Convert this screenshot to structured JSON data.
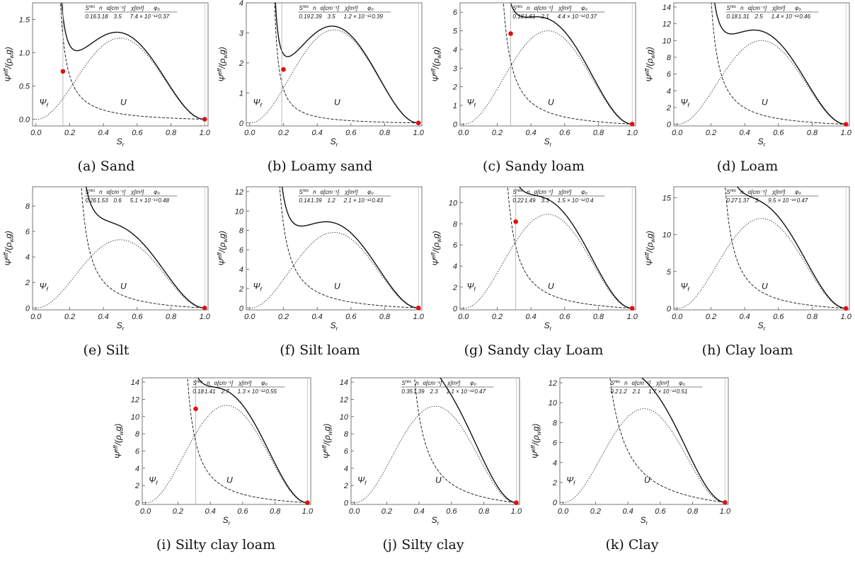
{
  "axis_labels": {
    "x": "S",
    "x_sub": "r",
    "y": "Ψ",
    "y_sup": "eff",
    "y_den": "/(ρ",
    "y_den_sub": "w",
    "y_den_end": "g)"
  },
  "curve_labels": {
    "psi": "Ψ",
    "psi_sub": "f",
    "u": "U"
  },
  "table_header": [
    "S",
    "res",
    "n",
    "α[cm⁻¹]",
    "χ[m²]",
    "φ₀"
  ],
  "x_ticks": [
    "0.0",
    "0.2",
    "0.4",
    "0.6",
    "0.8",
    "1.0"
  ],
  "chart_data": [
    {
      "type": "line",
      "caption": "(a) Sand",
      "params": {
        "S_res": "0.16",
        "n": "3.18",
        "alpha": "3.5",
        "chi": "7.4 × 10⁻¹²",
        "phi0": "0.37"
      },
      "ylim": [
        -0.1,
        1.75
      ],
      "y_ticks": [
        "0.0",
        "0.5",
        "1.0",
        "1.5"
      ],
      "y_tick_values": [
        0,
        0.5,
        1.0,
        1.5
      ],
      "vline": 0.16,
      "psi_peak": 1.22,
      "u_coeff": 0.045,
      "min_point": {
        "x": 0.16,
        "y": 0.72
      },
      "end_point": {
        "x": 1.0,
        "y": 0.0
      },
      "smooth_shoulder": true
    },
    {
      "type": "line",
      "caption": "(b) Loamy sand",
      "params": {
        "S_res": "0.19",
        "n": "2.39",
        "alpha": "3.5",
        "chi": "1.2 × 10⁻¹²",
        "phi0": "0.39"
      },
      "ylim": [
        -0.1,
        4.0
      ],
      "y_ticks": [
        "0",
        "1",
        "2",
        "3",
        "4"
      ],
      "y_tick_values": [
        0,
        1,
        2,
        3,
        4
      ],
      "vline": 0.19,
      "psi_peak": 3.1,
      "u_coeff": 0.06,
      "min_point": {
        "x": 0.2,
        "y": 1.78
      },
      "end_point": {
        "x": 1.0,
        "y": 0.0
      },
      "smooth_shoulder": true
    },
    {
      "type": "line",
      "caption": "(c) Sandy loam",
      "params": {
        "S_res": "0.18",
        "n": "1.61",
        "alpha": "2.1",
        "chi": "4.4 × 10⁻¹²",
        "phi0": "0.37"
      },
      "ylim": [
        -0.1,
        6.5
      ],
      "y_ticks": [
        "0",
        "1",
        "2",
        "3",
        "4",
        "5",
        "6"
      ],
      "y_tick_values": [
        0,
        1,
        2,
        3,
        4,
        5,
        6
      ],
      "vline": 0.28,
      "psi_peak": 5.0,
      "u_coeff": 0.25,
      "min_point": {
        "x": 0.28,
        "y": 4.85
      },
      "end_point": {
        "x": 1.0,
        "y": 0.0
      },
      "smooth_shoulder": true
    },
    {
      "type": "line",
      "caption": "(d) Loam",
      "params": {
        "S_res": "0.18",
        "n": "1.31",
        "alpha": "2.5",
        "chi": "1.4 × 10⁻¹²",
        "phi0": "0.46"
      },
      "ylim": [
        -0.2,
        14.5
      ],
      "y_ticks": [
        "0",
        "2",
        "4",
        "6",
        "8",
        "10",
        "12",
        "14"
      ],
      "y_tick_values": [
        0,
        2,
        4,
        6,
        8,
        10,
        12,
        14
      ],
      "vline": null,
      "psi_peak": 10.0,
      "u_coeff": 0.5,
      "min_point": null,
      "end_point": {
        "x": 1.0,
        "y": 0.0
      },
      "smooth_shoulder": false
    },
    {
      "type": "line",
      "caption": "(e) Silt",
      "params": {
        "S_res": "0.26",
        "n": "1.53",
        "alpha": "0.6",
        "chi": "5.1 × 10⁻¹³",
        "phi0": "0.48"
      },
      "ylim": [
        -0.15,
        9.5
      ],
      "y_ticks": [
        "0",
        "2",
        "4",
        "6",
        "8"
      ],
      "y_tick_values": [
        0,
        2,
        4,
        6,
        8
      ],
      "vline": null,
      "psi_peak": 5.35,
      "u_coeff": 0.35,
      "min_point": null,
      "end_point": {
        "x": 1.0,
        "y": 0.0
      },
      "smooth_shoulder": false
    },
    {
      "type": "line",
      "caption": "(f) Silt loam",
      "params": {
        "S_res": "0.14",
        "n": "1.39",
        "alpha": "1.2",
        "chi": "2.1 × 10⁻¹²",
        "phi0": "0.43"
      },
      "ylim": [
        -0.2,
        12.5
      ],
      "y_ticks": [
        "0",
        "2",
        "4",
        "6",
        "8",
        "10",
        "12"
      ],
      "y_tick_values": [
        0,
        2,
        4,
        6,
        8,
        10,
        12
      ],
      "vline": null,
      "psi_peak": 7.8,
      "u_coeff": 0.5,
      "min_point": null,
      "end_point": {
        "x": 1.0,
        "y": 0.0
      },
      "smooth_shoulder": false
    },
    {
      "type": "line",
      "caption": "(g) Sandy clay Loam",
      "params": {
        "S_res": "0.22",
        "n": "1.49",
        "alpha": "3.3",
        "chi": "1.5 × 10⁻¹²",
        "phi0": "0.4"
      },
      "ylim": [
        -0.15,
        11.5
      ],
      "y_ticks": [
        "0",
        "2",
        "4",
        "6",
        "8",
        "10"
      ],
      "y_tick_values": [
        0,
        2,
        4,
        6,
        8,
        10
      ],
      "vline": 0.31,
      "psi_peak": 8.9,
      "u_coeff": 0.5,
      "min_point": {
        "x": 0.31,
        "y": 8.2
      },
      "end_point": {
        "x": 1.0,
        "y": 0.0
      },
      "smooth_shoulder": true
    },
    {
      "type": "line",
      "caption": "(h) Clay loam",
      "params": {
        "S_res": "0.27",
        "n": "1.37",
        "alpha": "3.",
        "chi": "9.5 × 10⁻¹⁴",
        "phi0": "0.47"
      },
      "ylim": [
        -0.2,
        16.5
      ],
      "y_ticks": [
        "0",
        "5",
        "10",
        "15"
      ],
      "y_tick_values": [
        0,
        5,
        10,
        15
      ],
      "vline": null,
      "psi_peak": 12.2,
      "u_coeff": 0.7,
      "min_point": null,
      "end_point": {
        "x": 1.0,
        "y": 0.0
      },
      "smooth_shoulder": false
    },
    {
      "type": "line",
      "caption": "(i) Silty clay loam",
      "params": {
        "S_res": "0.18",
        "n": "1.41",
        "alpha": "2.7",
        "chi": "1.3 × 10⁻¹²",
        "phi0": "0.55"
      },
      "ylim": [
        -0.2,
        14.5
      ],
      "y_ticks": [
        "0",
        "2",
        "4",
        "6",
        "8",
        "10",
        "12",
        "14"
      ],
      "y_tick_values": [
        0,
        2,
        4,
        6,
        8,
        10,
        12,
        14
      ],
      "vline": 0.31,
      "psi_peak": 11.3,
      "u_coeff": 0.6,
      "min_point": {
        "x": 0.31,
        "y": 10.9
      },
      "end_point": {
        "x": 1.0,
        "y": 0.0
      },
      "smooth_shoulder": true
    },
    {
      "type": "line",
      "caption": "(j) Silty clay",
      "params": {
        "S_res": "0.35",
        "n": "1.39",
        "alpha": "2.3",
        "chi": "1.1 × 10⁻¹²",
        "phi0": "0.47"
      },
      "ylim": [
        -0.2,
        14.5
      ],
      "y_ticks": [
        "0",
        "2",
        "4",
        "6",
        "8",
        "10",
        "12",
        "14"
      ],
      "y_tick_values": [
        0,
        2,
        4,
        6,
        8,
        10,
        12,
        14
      ],
      "vline": null,
      "psi_peak": 11.2,
      "u_coeff": 0.9,
      "min_point": null,
      "end_point": {
        "x": 1.0,
        "y": 0.0
      },
      "smooth_shoulder": false
    },
    {
      "type": "line",
      "caption": "(k) Clay",
      "params": {
        "S_res": "0.2",
        "n": "1.2",
        "alpha": "2.1",
        "chi": "1.7 × 10⁻¹²",
        "phi0": "0.51"
      },
      "ylim": [
        -0.2,
        12.5
      ],
      "y_ticks": [
        "0",
        "2",
        "4",
        "6",
        "8",
        "10",
        "12"
      ],
      "y_tick_values": [
        0,
        2,
        4,
        6,
        8,
        10,
        12
      ],
      "vline": null,
      "psi_peak": 9.4,
      "u_coeff": 1.2,
      "min_point": null,
      "end_point": {
        "x": 1.0,
        "y": 0.0
      },
      "smooth_shoulder": false
    }
  ]
}
